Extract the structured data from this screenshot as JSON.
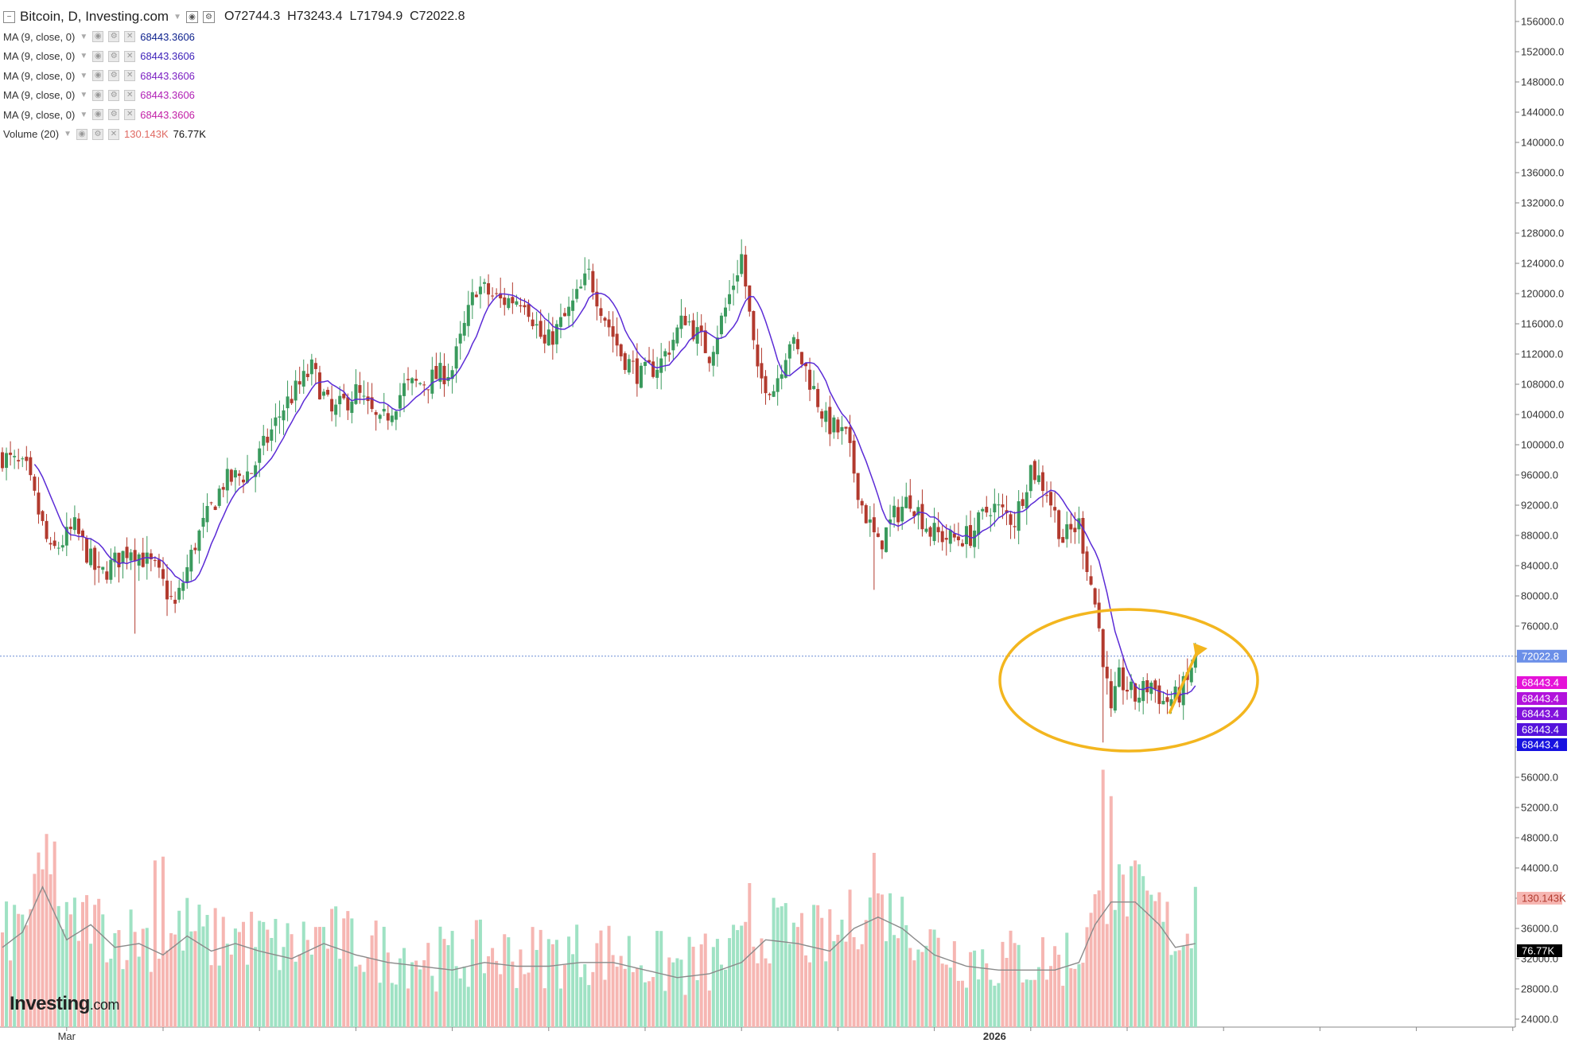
{
  "legend": {
    "title": "Bitcoin, D, Investing.com",
    "open_label": "O",
    "open": "72744.3",
    "high_label": "H",
    "high": "73243.4",
    "low_label": "L",
    "low": "71794.9",
    "close_label": "C",
    "close": "72022.8",
    "indicators": [
      {
        "label": "MA (9, close, 0)",
        "value": "68443.3606",
        "color": "#0b1f8c"
      },
      {
        "label": "MA (9, close, 0)",
        "value": "68443.3606",
        "color": "#3b1fb8"
      },
      {
        "label": "MA (9, close, 0)",
        "value": "68443.3606",
        "color": "#7a1fc2"
      },
      {
        "label": "MA (9, close, 0)",
        "value": "68443.3606",
        "color": "#b01fb5"
      },
      {
        "label": "MA (9, close, 0)",
        "value": "68443.3606",
        "color": "#c21fa6"
      }
    ],
    "volume": {
      "label": "Volume (20)",
      "value1": "130.143K",
      "value2": "76.77K"
    }
  },
  "logo": {
    "text": "Investing",
    "suffix": ".com"
  },
  "colors": {
    "up": "#3a9a5d",
    "down": "#b23a2e",
    "vol_up": "#9fe2c4",
    "vol_down": "#f6b6b2",
    "ma": "#5b2bd6",
    "vol_ma": "#8a8a8a",
    "annotation": "#f3b61f",
    "grid_dotted": "#6a8bd6"
  },
  "chart_data": {
    "type": "candlestick",
    "title": "Bitcoin, D, Investing.com",
    "y_ticks": [
      24000,
      28000,
      32000,
      36000,
      40000,
      44000,
      48000,
      52000,
      56000,
      60000,
      64000,
      68000,
      72000,
      76000,
      80000,
      84000,
      88000,
      92000,
      96000,
      100000,
      104000,
      108000,
      112000,
      116000,
      120000,
      124000,
      128000,
      132000,
      136000,
      140000,
      144000,
      148000,
      152000,
      156000
    ],
    "visible_tick_labels": [
      "24000.0",
      "28000.0",
      "32000.0",
      "36000.0",
      "44000.0",
      "48000.0",
      "52000.0",
      "56000.0",
      "76000.0",
      "80000.0",
      "84000.0",
      "88000.0",
      "92000.0",
      "96000.0",
      "100000.0",
      "104000.0",
      "108000.0",
      "112000.0",
      "116000.0",
      "120000.0",
      "124000.0",
      "128000.0",
      "132000.0",
      "136000.0",
      "140000.0",
      "144000.0",
      "148000.0",
      "152000.0",
      "156000.0"
    ],
    "ylim": [
      23500,
      157500
    ],
    "x_labels": [
      {
        "label": "Mar",
        "index": 16
      },
      {
        "label": "2026",
        "index": 247
      }
    ],
    "x_tick_indices": [
      16,
      40,
      64,
      88,
      112,
      136,
      160,
      184,
      208,
      232,
      256,
      280,
      304,
      328,
      352,
      376
    ],
    "price_markers": [
      {
        "label": "72022.8",
        "value": 72022.8,
        "color": "#6b8fe8"
      },
      {
        "label": "68443.4",
        "color": "#e512d8"
      },
      {
        "label": "68443.4",
        "color": "#b212dc"
      },
      {
        "label": "68443.4",
        "color": "#8212dc"
      },
      {
        "label": "68443.4",
        "color": "#5512dc"
      },
      {
        "label": "68443.4",
        "color": "#1712e0"
      }
    ],
    "volume_markers": [
      {
        "label": "130.143K",
        "color": "#f6b6b2",
        "text_color": "#b23a2e"
      },
      {
        "label": "76.77K",
        "color": "#000000",
        "text_color": "#ffffff"
      }
    ],
    "close_anchors": [
      [
        0,
        98500
      ],
      [
        6,
        96500
      ],
      [
        12,
        85500
      ],
      [
        18,
        89000
      ],
      [
        24,
        82500
      ],
      [
        32,
        86500
      ],
      [
        38,
        83500
      ],
      [
        43,
        78500
      ],
      [
        48,
        87000
      ],
      [
        55,
        95000
      ],
      [
        62,
        96500
      ],
      [
        70,
        105000
      ],
      [
        77,
        110000
      ],
      [
        82,
        104000
      ],
      [
        88,
        107000
      ],
      [
        94,
        102500
      ],
      [
        100,
        107500
      ],
      [
        106,
        108500
      ],
      [
        112,
        110000
      ],
      [
        118,
        121000
      ],
      [
        124,
        119000
      ],
      [
        130,
        119500
      ],
      [
        135,
        113000
      ],
      [
        141,
        117500
      ],
      [
        146,
        122500
      ],
      [
        150,
        117000
      ],
      [
        154,
        112000
      ],
      [
        159,
        109000
      ],
      [
        164,
        111000
      ],
      [
        170,
        117000
      ],
      [
        176,
        112000
      ],
      [
        180,
        118000
      ],
      [
        184,
        125000
      ],
      [
        188,
        109000
      ],
      [
        192,
        107500
      ],
      [
        196,
        114000
      ],
      [
        200,
        110000
      ],
      [
        205,
        103000
      ],
      [
        210,
        101000
      ],
      [
        214,
        92000
      ],
      [
        218,
        86500
      ],
      [
        222,
        90500
      ],
      [
        226,
        93000
      ],
      [
        231,
        88500
      ],
      [
        236,
        87500
      ],
      [
        241,
        88000
      ],
      [
        246,
        92000
      ],
      [
        252,
        90000
      ],
      [
        256,
        97000
      ],
      [
        260,
        94000
      ],
      [
        264,
        87500
      ],
      [
        268,
        89500
      ],
      [
        272,
        79000
      ],
      [
        274,
        72000
      ],
      [
        276,
        64000
      ],
      [
        278,
        69000
      ],
      [
        282,
        66500
      ],
      [
        286,
        68500
      ],
      [
        289,
        66000
      ],
      [
        292,
        66500
      ],
      [
        295,
        68500
      ],
      [
        297,
        73000
      ]
    ],
    "volume_anchors": [
      [
        0,
        33500
      ],
      [
        5,
        35500
      ],
      [
        10,
        41500
      ],
      [
        16,
        34500
      ],
      [
        22,
        36500
      ],
      [
        28,
        33500
      ],
      [
        34,
        34000
      ],
      [
        40,
        32500
      ],
      [
        46,
        35000
      ],
      [
        52,
        33000
      ],
      [
        58,
        34000
      ],
      [
        64,
        33000
      ],
      [
        72,
        32000
      ],
      [
        80,
        34000
      ],
      [
        88,
        32500
      ],
      [
        96,
        31500
      ],
      [
        104,
        31000
      ],
      [
        112,
        30500
      ],
      [
        120,
        31500
      ],
      [
        128,
        31000
      ],
      [
        136,
        31000
      ],
      [
        144,
        31500
      ],
      [
        152,
        31500
      ],
      [
        160,
        30500
      ],
      [
        168,
        29500
      ],
      [
        176,
        30000
      ],
      [
        184,
        31500
      ],
      [
        190,
        34500
      ],
      [
        198,
        34000
      ],
      [
        206,
        33000
      ],
      [
        212,
        36000
      ],
      [
        218,
        37500
      ],
      [
        224,
        36000
      ],
      [
        232,
        32500
      ],
      [
        240,
        31000
      ],
      [
        248,
        30500
      ],
      [
        256,
        30500
      ],
      [
        262,
        30500
      ],
      [
        268,
        31500
      ],
      [
        272,
        36500
      ],
      [
        276,
        39500
      ],
      [
        282,
        39500
      ],
      [
        288,
        36500
      ],
      [
        292,
        33500
      ],
      [
        297,
        34000
      ]
    ],
    "volume_spikes": [
      [
        11,
        48500
      ],
      [
        13,
        47500
      ],
      [
        38,
        45000
      ],
      [
        40,
        45500
      ],
      [
        186,
        42000
      ],
      [
        217,
        46000
      ],
      [
        274,
        57000
      ],
      [
        276,
        53500
      ],
      [
        297,
        41500
      ]
    ],
    "count": 298
  }
}
